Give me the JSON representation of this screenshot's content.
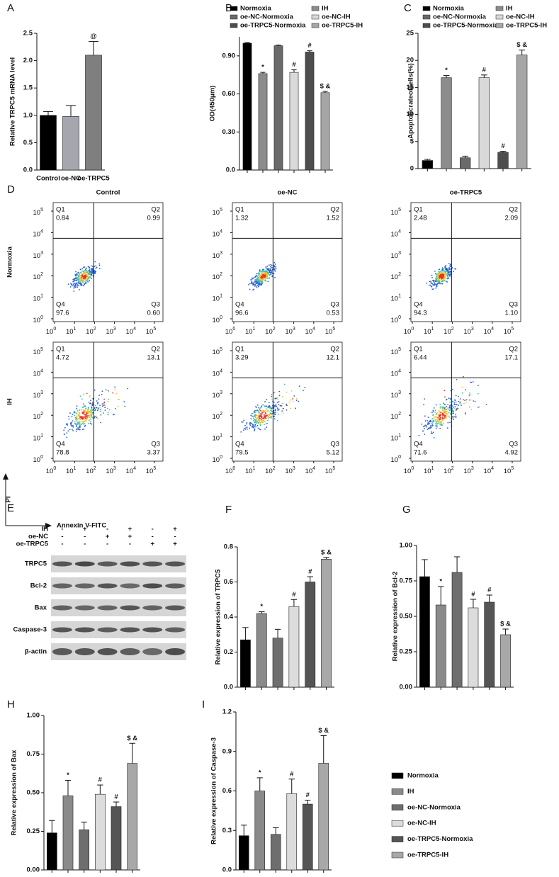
{
  "chart_data": [
    {
      "type": "bar",
      "label": "A",
      "ylabel": "Relative TRPC5 mRNA level",
      "categories": [
        "Control",
        "oe-NC",
        "oe-TRPC5"
      ],
      "colors": [
        "#000000",
        "#a6a6ae",
        "#7f7f7f"
      ],
      "values": [
        1.0,
        0.98,
        2.1
      ],
      "errors": [
        0.07,
        0.2,
        0.25
      ],
      "annotations": [
        null,
        null,
        "@"
      ],
      "ylim": [
        0,
        2.5
      ],
      "yticks": [
        {
          "value": 0,
          "label": "0.0"
        },
        0.5,
        {
          "value": 1,
          "label": "1.0"
        },
        1.5,
        {
          "value": 2,
          "label": "2.0"
        },
        2.5
      ]
    },
    {
      "type": "bar",
      "label": "B",
      "ylabel": "OD(450μm)",
      "categories": [
        "Normoxia",
        "IH",
        "oe-NC-Normoxia",
        "oe-NC-IH",
        "oe-TRPC5-Normoxia",
        "oe-TRPC5-IH"
      ],
      "colors": [
        "#000000",
        "#8c8c8c",
        "#6a6a6a",
        "#d9d9d9",
        "#4d4d4d",
        "#a6a6a6"
      ],
      "values": [
        1.0,
        0.76,
        0.98,
        0.77,
        0.93,
        0.61
      ],
      "errors": [
        0.005,
        0.01,
        0.005,
        0.02,
        0.01,
        0.01
      ],
      "annotations": [
        null,
        "*",
        null,
        "#",
        "#",
        "$ &"
      ],
      "ylim": [
        0,
        1.05
      ],
      "yticks": [
        {
          "value": 0,
          "label": "0.0"
        },
        {
          "value": 0.3,
          "label": "0.30"
        },
        {
          "value": 0.6,
          "label": "0.60"
        },
        {
          "value": 0.9,
          "label": "0.90"
        }
      ]
    },
    {
      "type": "bar",
      "label": "C",
      "ylabel": "Apoptoticrateofcells(%)",
      "categories": [
        "Normoxia",
        "IH",
        "oe-NC-Normoxia",
        "oe-NC-IH",
        "oe-TRPC5-Normoxia",
        "oe-TRPC5-IH"
      ],
      "colors": [
        "#000000",
        "#8c8c8c",
        "#6a6a6a",
        "#d9d9d9",
        "#4d4d4d",
        "#a6a6a6"
      ],
      "values": [
        1.5,
        16.8,
        2.0,
        16.8,
        3.0,
        21.0
      ],
      "errors": [
        0.2,
        0.4,
        0.3,
        0.5,
        0.2,
        0.9
      ],
      "annotations": [
        null,
        "*",
        null,
        "#",
        "#",
        "$ &"
      ],
      "ylim": [
        0,
        25
      ],
      "yticks": [
        0,
        5,
        10,
        15,
        20,
        25
      ]
    },
    {
      "type": "bar",
      "label": "F",
      "ylabel": "Relative expression of TRPC5",
      "colors": [
        "#000000",
        "#8a8a8a",
        "#6e6e6e",
        "#dcdcdc",
        "#555555",
        "#a8a8a8"
      ],
      "values": [
        0.27,
        0.42,
        0.28,
        0.46,
        0.6,
        0.73
      ],
      "errors": [
        0.07,
        0.01,
        0.05,
        0.04,
        0.03,
        0.01
      ],
      "annotations": [
        null,
        "*",
        null,
        "#",
        "#",
        "$ &"
      ],
      "ylim": [
        0,
        0.8
      ],
      "yticks": [
        {
          "value": 0,
          "label": "0.0"
        },
        0.2,
        0.4,
        0.6,
        0.8
      ]
    },
    {
      "type": "bar",
      "label": "G",
      "ylabel": "Relative expression of Bcl-2",
      "colors": [
        "#000000",
        "#8a8a8a",
        "#6e6e6e",
        "#dcdcdc",
        "#555555",
        "#a8a8a8"
      ],
      "values": [
        0.78,
        0.58,
        0.81,
        0.56,
        0.6,
        0.37
      ],
      "errors": [
        0.12,
        0.13,
        0.11,
        0.06,
        0.05,
        0.04
      ],
      "annotations": [
        null,
        "*",
        null,
        "#",
        "#",
        "$ &"
      ],
      "ylim": [
        0,
        1
      ],
      "yticks": [
        {
          "value": 0,
          "label": "0.00"
        },
        0.25,
        {
          "value": 0.5,
          "label": "0.50"
        },
        0.75,
        {
          "value": 1,
          "label": "1.00"
        }
      ]
    },
    {
      "type": "bar",
      "label": "H",
      "ylabel": "Relative expression of Bax",
      "colors": [
        "#000000",
        "#8a8a8a",
        "#6e6e6e",
        "#dcdcdc",
        "#555555",
        "#a8a8a8"
      ],
      "values": [
        0.24,
        0.48,
        0.26,
        0.49,
        0.41,
        0.69
      ],
      "errors": [
        0.08,
        0.1,
        0.05,
        0.06,
        0.03,
        0.13
      ],
      "annotations": [
        null,
        "*",
        null,
        "#",
        "#",
        "$ &"
      ],
      "ylim": [
        0,
        1
      ],
      "yticks": [
        {
          "value": 0,
          "label": "0.00"
        },
        0.25,
        {
          "value": 0.5,
          "label": "0.50"
        },
        0.75,
        {
          "value": 1,
          "label": "1.00"
        }
      ]
    },
    {
      "type": "bar",
      "label": "I",
      "ylabel": "Relative expression of Caspase-3",
      "colors": [
        "#000000",
        "#8a8a8a",
        "#6e6e6e",
        "#dcdcdc",
        "#555555",
        "#a8a8a8"
      ],
      "values": [
        0.26,
        0.6,
        0.27,
        0.58,
        0.5,
        0.81
      ],
      "errors": [
        0.08,
        0.1,
        0.05,
        0.11,
        0.03,
        0.21
      ],
      "annotations": [
        null,
        "*",
        null,
        "#",
        "#",
        "$ &"
      ],
      "ylim": [
        0,
        1.2
      ],
      "yticks": [
        {
          "value": 0,
          "label": "0.0"
        },
        0.3,
        0.6,
        0.9,
        1.2
      ]
    }
  ],
  "shared_legend": {
    "categories": [
      "Normoxia",
      "IH",
      "oe-NC-Normoxia",
      "oe-NC-IH",
      "oe-TRPC5-Normoxia",
      "oe-TRPC5-IH"
    ],
    "colors": [
      "#000000",
      "#8a8a8a",
      "#6e6e6e",
      "#dcdcdc",
      "#555555",
      "#a8a8a8"
    ]
  },
  "flow_cytometry": {
    "label": "D",
    "columns": [
      "Control",
      "oe-NC",
      "oe-TRPC5"
    ],
    "rows": [
      "Normoxia",
      "IH"
    ],
    "quadrant_names": [
      "Q1",
      "Q2",
      "Q3",
      "Q4"
    ],
    "tick_base": "10",
    "tick_exponents": [
      "0",
      "1",
      "2",
      "3",
      "4",
      "5"
    ],
    "y_axis_label": "PI",
    "x_axis_label": "Annexin V-FITC",
    "plots": [
      [
        [
          "0.84",
          "0.99",
          "0.60",
          "97.6"
        ],
        [
          "1.32",
          "1.52",
          "0.53",
          "96.6"
        ],
        [
          "2.48",
          "2.09",
          "1.10",
          "94.3"
        ]
      ],
      [
        [
          "4.72",
          "13.1",
          "3.37",
          "78.8"
        ],
        [
          "3.29",
          "12.1",
          "5.12",
          "79.5"
        ],
        [
          "6.44",
          "17.1",
          "4.92",
          "71.6"
        ]
      ]
    ]
  },
  "western_blot": {
    "label": "E",
    "conditions": [
      {
        "name": "IH",
        "signs": [
          "-",
          "+",
          "-",
          "+",
          "-",
          "+"
        ]
      },
      {
        "name": "oe-NC",
        "signs": [
          "-",
          "-",
          "+",
          "+",
          "-",
          "-"
        ]
      },
      {
        "name": "oe-TRPC5",
        "signs": [
          "-",
          "-",
          "-",
          "-",
          "+",
          "+"
        ]
      }
    ],
    "bands": [
      "TRPC5",
      "Bcl-2",
      "Bax",
      "Caspase-3",
      "β-actin"
    ]
  }
}
